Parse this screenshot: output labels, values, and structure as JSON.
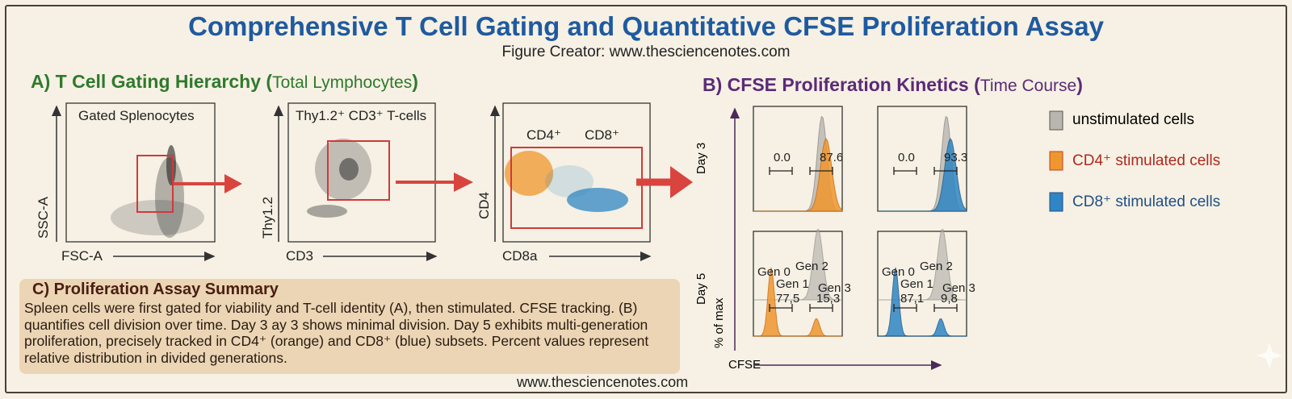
{
  "title": "Comprehensive T Cell Gating and Quantitative CFSE Proliferation Assay",
  "creator": "Figure Creator: www.thesciencenotes.com",
  "panel_a": {
    "title": "A) T Cell Gating Hierarchy (",
    "title_sub": "Total Lymphocytes",
    "title_end": ")",
    "plots": [
      {
        "label": "Gated Splenocytes",
        "x_axis": "FSC-A",
        "y_axis": "SSC-A"
      },
      {
        "label": "Thy1.2⁺ CD3⁺ T-cells",
        "x_axis": "CD3",
        "y_axis": "Thy1.2"
      },
      {
        "label_cd4": "CD4⁺",
        "label_cd8": "CD8⁺",
        "x_axis": "CD8a",
        "y_axis": "CD4"
      }
    ]
  },
  "panel_b": {
    "title": "B) CFSE Proliferation Kinetics (",
    "title_sub": "Time Course",
    "title_end": ")",
    "row_labels": [
      "Day 3",
      "Day 5"
    ],
    "y_axis": "% of max",
    "x_axis": "CFSE",
    "day3": {
      "cd4": [
        "0.0",
        "87.6"
      ],
      "cd8": [
        "0.0",
        "93.3"
      ]
    },
    "day5": {
      "cd4": {
        "gates": [
          "77,5",
          "15,3"
        ],
        "gens": [
          "Gen 0",
          "Gen 1",
          "Gen 2",
          "Gen 3"
        ]
      },
      "cd8": {
        "gates": [
          "87,1",
          "9,8"
        ],
        "gens": [
          "Gen 0",
          "Gen 1",
          "Gen 2",
          "Gen 3"
        ]
      }
    },
    "legend": [
      {
        "label": "unstimulated cells",
        "color": "#b9b6b0",
        "text_color": "#222222"
      },
      {
        "label": "CD4⁺ stimulated cells",
        "color": "#f0962e",
        "text_color": "#b0281e"
      },
      {
        "label": "CD8⁺ stimulated cells",
        "color": "#2f86c4",
        "text_color": "#1f4f86"
      }
    ]
  },
  "panel_c": {
    "title": "C) Proliferation Assay Summary",
    "body": "Spleen cells were first gated for viability and T-cell identity (A), then stimulated. CFSE tracking. (B) quantifies cell division over time. Day 3 ay 3 shows minimal division. Day 5 exhibits multi-generation proliferation, precisely tracked in CD4⁺ (orange) and CD8⁺ (blue) subsets. Percent values represent relative distribution in divided generations."
  },
  "footer": "www.thesciencenotes.com",
  "colors": {
    "title": "#1f5aa0",
    "panel_a": "#2f7a2c",
    "panel_b": "#5c2a78",
    "gate": "#d03a3a",
    "arrow": "#d9443f"
  }
}
